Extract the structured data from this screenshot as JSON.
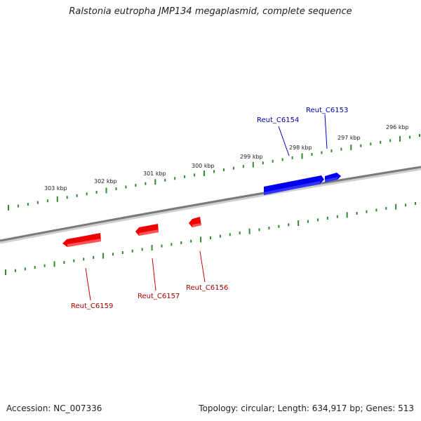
{
  "title": "Ralstonia eutropha JMP134 megaplasmid, complete sequence",
  "footer": {
    "accession": "Accession: NC_007336",
    "topology": "Topology: circular; Length: 634,917 bp; Genes: 513"
  },
  "colors": {
    "forward_gene": "#0000ee",
    "reverse_gene": "#ee0000",
    "ticks": "#2e8b2e",
    "backbone": "#7a7a7a"
  },
  "scale_labels": [
    "296 kbp",
    "297 kbp",
    "298 kbp",
    "299 kbp",
    "300 kbp",
    "301 kbp",
    "302 kbp",
    "303 kbp"
  ],
  "genes": [
    {
      "name": "Reut_C6153",
      "strand": "forward"
    },
    {
      "name": "Reut_C6154",
      "strand": "forward"
    },
    {
      "name": "Reut_C6156",
      "strand": "reverse"
    },
    {
      "name": "Reut_C6157",
      "strand": "reverse"
    },
    {
      "name": "Reut_C6159",
      "strand": "reverse"
    }
  ]
}
